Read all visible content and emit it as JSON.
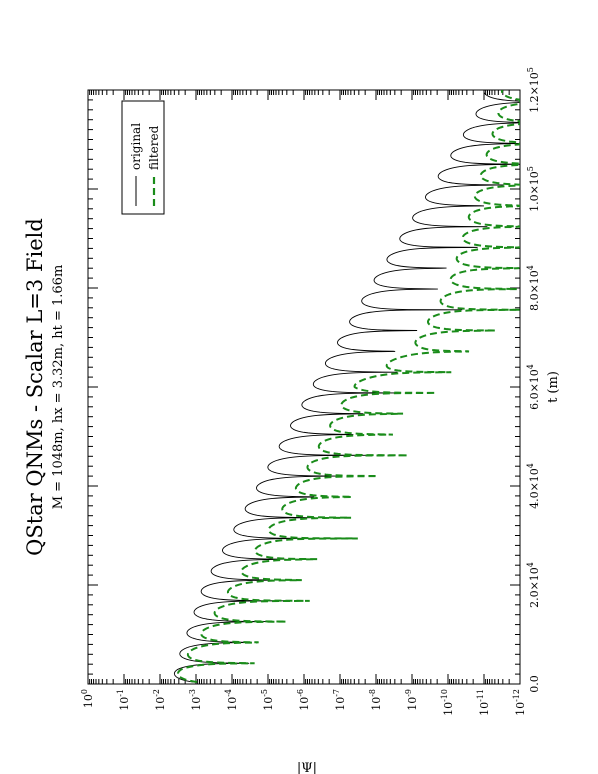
{
  "chart_data": {
    "type": "line",
    "title": "QStar QNMs - Scalar L=3 Field",
    "subtitle": "M = 1048m, hx = 3.32m, ht = 1.66m",
    "xlabel": "t (m)",
    "ylabel": "|Ψ|",
    "xlim": [
      0,
      120000
    ],
    "ylim": [
      1e-12,
      1
    ],
    "yscale": "log",
    "x_ticks": [
      {
        "value": 0,
        "label": "0.0"
      },
      {
        "value": 20000,
        "label": "2.0×10"
      },
      {
        "value": 40000,
        "label": "4.0×10"
      },
      {
        "value": 60000,
        "label": "6.0×10"
      },
      {
        "value": 80000,
        "label": "8.0×10"
      },
      {
        "value": 100000,
        "label": "1.0×10"
      },
      {
        "value": 120000,
        "label": "1.2×10"
      }
    ],
    "x_tick_exponents": [
      "",
      "4",
      "4",
      "4",
      "4",
      "5",
      "5"
    ],
    "y_tick_exponents": [
      "0",
      "-1",
      "-2",
      "-3",
      "-4",
      "-5",
      "-6",
      "-7",
      "-8",
      "-9",
      "-10",
      "-11",
      "-12"
    ],
    "y_tick_base": "10",
    "legend": {
      "position": "top-left",
      "entries": [
        "original",
        "filtered"
      ]
    },
    "colors": {
      "original": "#000000",
      "filtered": "#1a8c1a"
    },
    "series": [
      {
        "name": "original",
        "style": "solid",
        "oscillation_period": 4200,
        "envelope": [
          {
            "t": 3000,
            "log10_amp": -2.4
          },
          {
            "t": 20000,
            "log10_amp": -3.2
          },
          {
            "t": 40000,
            "log10_amp": -4.7
          },
          {
            "t": 60000,
            "log10_amp": -6.2
          },
          {
            "t": 80000,
            "log10_amp": -7.8
          },
          {
            "t": 100000,
            "log10_amp": -9.5
          },
          {
            "t": 118000,
            "log10_amp": -11.0
          }
        ]
      },
      {
        "name": "filtered",
        "style": "dashed",
        "oscillation_period": 4200,
        "envelope": [
          {
            "t": 3000,
            "log10_amp": -2.5
          },
          {
            "t": 20000,
            "log10_amp": -4.0
          },
          {
            "t": 40000,
            "log10_amp": -5.8
          },
          {
            "t": 60000,
            "log10_amp": -7.3
          },
          {
            "t": 68000,
            "log10_amp": -9.0
          },
          {
            "t": 80000,
            "log10_amp": -10.0
          },
          {
            "t": 100000,
            "log10_amp": -10.8
          },
          {
            "t": 118000,
            "log10_amp": -11.5
          }
        ]
      }
    ]
  }
}
